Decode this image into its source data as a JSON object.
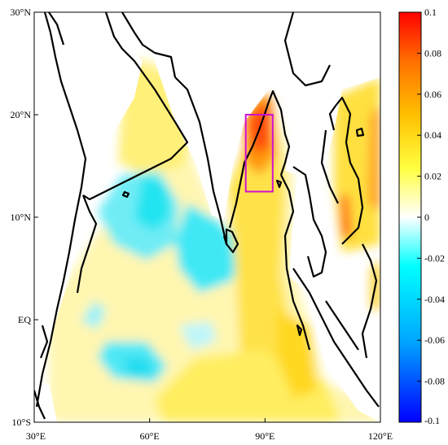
{
  "map": {
    "x_ticks": [
      {
        "lon": 30,
        "label": "30°E"
      },
      {
        "lon": 60,
        "label": "60°E"
      },
      {
        "lon": 90,
        "label": "90°E"
      },
      {
        "lon": 120,
        "label": "120°E"
      }
    ],
    "y_ticks": [
      {
        "lat": 30,
        "label": "30°N"
      },
      {
        "lat": 20,
        "label": "20°N"
      },
      {
        "lat": 10,
        "label": "10°N"
      },
      {
        "lat": 0,
        "label": "EQ"
      },
      {
        "lat": -10,
        "label": "10°S"
      }
    ],
    "extent": {
      "lon": [
        30,
        120
      ],
      "lat": [
        -10,
        30
      ]
    },
    "region_box": {
      "lon": [
        85,
        92
      ],
      "lat": [
        12.5,
        20
      ],
      "color": "#d010d0"
    }
  },
  "colorbar": {
    "ticks": [
      {
        "value": 0.1,
        "label": "0.1"
      },
      {
        "value": 0.08,
        "label": "0.08"
      },
      {
        "value": 0.06,
        "label": "0.06"
      },
      {
        "value": 0.04,
        "label": "0.04"
      },
      {
        "value": 0.02,
        "label": "0.02"
      },
      {
        "value": 0,
        "label": "0"
      },
      {
        "value": -0.02,
        "label": "-0.02"
      },
      {
        "value": -0.04,
        "label": "-0.04"
      },
      {
        "value": -0.06,
        "label": "-0.06"
      },
      {
        "value": -0.08,
        "label": "-0.08"
      },
      {
        "value": -0.1,
        "label": "-0.1"
      }
    ],
    "range": [
      -0.1,
      0.1
    ],
    "colors": [
      "#0000ff",
      "#00a0ff",
      "#00ffff",
      "#ffffff",
      "#ffff00",
      "#ff8000",
      "#ff0000"
    ]
  }
}
